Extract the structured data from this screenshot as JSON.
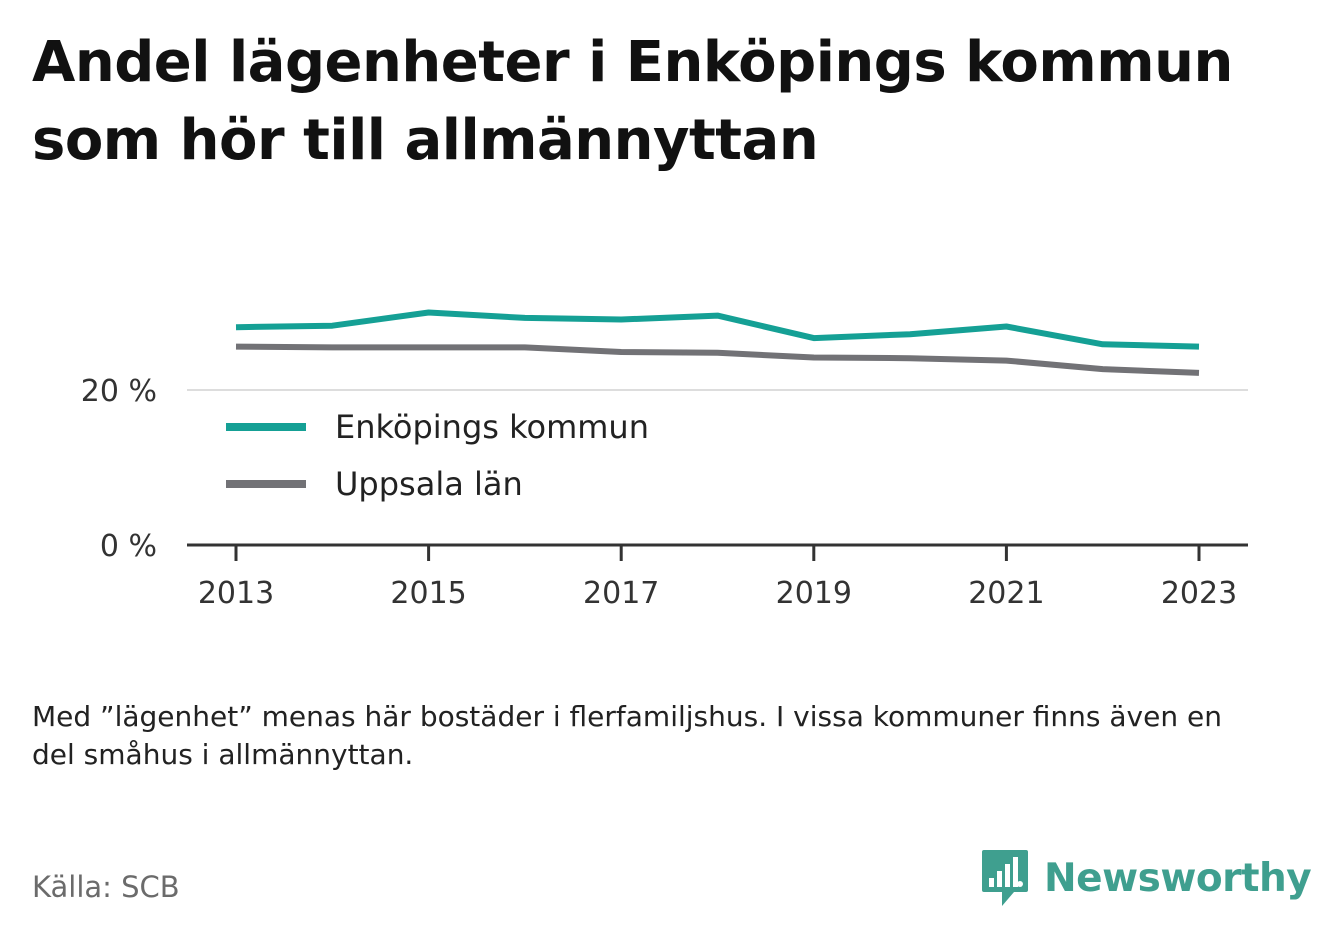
{
  "title": "Andel lägenheter i Enköpings kommun som hör till allmännyttan",
  "note": "Med ”lägenhet” menas här bostäder i flerfamiljshus. I vissa kommuner finns även en del småhus i allmännyttan.",
  "source": "Källa: SCB",
  "logo": {
    "text": "Newsworthy",
    "icon": "newsworthy-logo-icon",
    "color": "#3f9f8f"
  },
  "colors": {
    "enkoping": "#15a095",
    "uppsala": "#727276",
    "axis": "#333333",
    "grid": "#dddddd"
  },
  "chart_data": {
    "type": "line",
    "x": [
      2013,
      2014,
      2015,
      2016,
      2017,
      2018,
      2019,
      2020,
      2021,
      2022,
      2023
    ],
    "x_tick_labels": [
      "2013",
      "2015",
      "2017",
      "2019",
      "2021",
      "2023"
    ],
    "x_tick_values": [
      2013,
      2015,
      2017,
      2019,
      2021,
      2023
    ],
    "y_tick_labels": [
      "0 %",
      "20 %"
    ],
    "y_tick_values": [
      0,
      20
    ],
    "ylim": [
      0,
      33
    ],
    "grid": "horizontal",
    "legend_position": "inside-bottom-left",
    "series": [
      {
        "name": "Enköpings kommun",
        "color": "#15a095",
        "values": [
          28.1,
          28.3,
          30.0,
          29.3,
          29.1,
          29.6,
          26.7,
          27.2,
          28.2,
          25.9,
          25.6
        ]
      },
      {
        "name": "Uppsala län",
        "color": "#727276",
        "values": [
          25.6,
          25.5,
          25.5,
          25.5,
          24.9,
          24.8,
          24.2,
          24.1,
          23.8,
          22.7,
          22.2
        ]
      }
    ]
  }
}
